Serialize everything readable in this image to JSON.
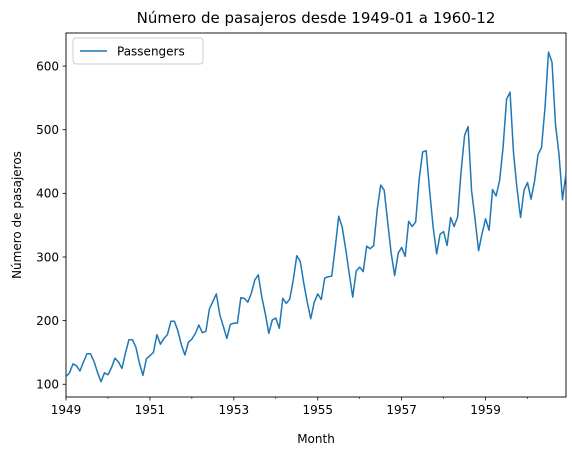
{
  "chart_data": {
    "type": "line",
    "title": "Número de pasajeros desde 1949-01 a 1960-12",
    "xlabel": "Month",
    "ylabel": "Número de pasajeros",
    "x_start": "1949-01",
    "x_end": "1960-12",
    "xlim": [
      "1949-01",
      "1960-12"
    ],
    "ylim": [
      80,
      652
    ],
    "x_ticks_major": [
      "1949",
      "1951",
      "1953",
      "1955",
      "1957",
      "1959"
    ],
    "y_ticks": [
      100,
      200,
      300,
      400,
      500,
      600
    ],
    "grid": false,
    "legend": {
      "position": "top-left",
      "entries": [
        "Passengers"
      ]
    },
    "series": [
      {
        "name": "Passengers",
        "color": "#1f77b4",
        "values": [
          112,
          118,
          132,
          129,
          121,
          135,
          148,
          148,
          136,
          119,
          104,
          118,
          115,
          126,
          141,
          135,
          125,
          149,
          170,
          170,
          158,
          133,
          114,
          140,
          145,
          150,
          178,
          163,
          172,
          178,
          199,
          199,
          184,
          162,
          146,
          166,
          171,
          180,
          193,
          181,
          183,
          218,
          230,
          242,
          209,
          191,
          172,
          194,
          196,
          196,
          236,
          235,
          229,
          243,
          264,
          272,
          237,
          211,
          180,
          201,
          204,
          188,
          235,
          227,
          234,
          264,
          302,
          293,
          259,
          229,
          203,
          229,
          242,
          233,
          267,
          269,
          270,
          315,
          364,
          347,
          312,
          274,
          237,
          278,
          284,
          277,
          317,
          313,
          318,
          374,
          413,
          405,
          355,
          306,
          271,
          306,
          315,
          301,
          356,
          348,
          355,
          422,
          465,
          467,
          404,
          347,
          305,
          336,
          340,
          318,
          362,
          348,
          363,
          435,
          491,
          505,
          404,
          359,
          310,
          337,
          360,
          342,
          406,
          396,
          420,
          472,
          548,
          559,
          463,
          407,
          362,
          405,
          417,
          391,
          419,
          461,
          472,
          535,
          622,
          606,
          508,
          461,
          390,
          432
        ]
      }
    ]
  }
}
